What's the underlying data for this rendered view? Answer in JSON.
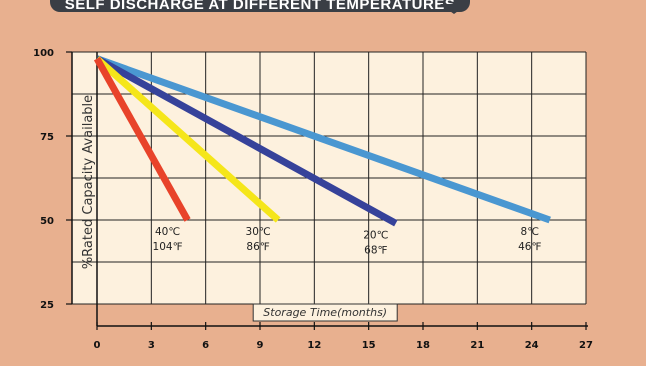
{
  "banner": "SELF DISCHARGE AT DIFFERENT TEMPERATURES",
  "chart_data": {
    "type": "line",
    "xlabel": "Storage Time(months)",
    "ylabel": "%Rated Capacity Available",
    "xlim": [
      0,
      27
    ],
    "ylim": [
      25,
      100
    ],
    "xticks": [
      0,
      3,
      6,
      9,
      12,
      15,
      18,
      21,
      24,
      27
    ],
    "yticks": [
      25,
      50,
      75,
      100
    ],
    "grid": true,
    "series": [
      {
        "color": "#e8432a",
        "x": [
          0,
          5
        ],
        "y": [
          98,
          50
        ],
        "label_c": "40℃",
        "label_f": "104℉"
      },
      {
        "color": "#f5e61a",
        "x": [
          0,
          10
        ],
        "y": [
          98,
          50
        ],
        "label_c": "30℃",
        "label_f": "86℉"
      },
      {
        "color": "#36429a",
        "x": [
          0,
          16.5
        ],
        "y": [
          98,
          49
        ],
        "label_c": "20℃",
        "label_f": "68℉"
      },
      {
        "color": "#4a97d1",
        "x": [
          0,
          25
        ],
        "y": [
          98,
          50
        ],
        "label_c": "8℃",
        "label_f": "46℉"
      }
    ]
  }
}
